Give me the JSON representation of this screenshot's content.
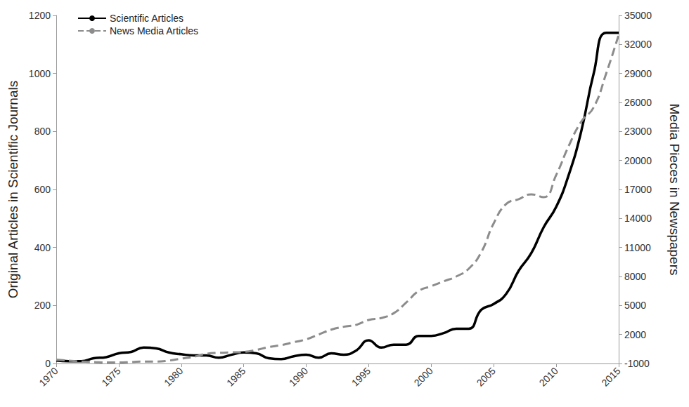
{
  "chart_data": {
    "type": "line",
    "x": [
      1970,
      1971,
      1972,
      1973,
      1974,
      1975,
      1976,
      1977,
      1978,
      1979,
      1980,
      1981,
      1982,
      1983,
      1984,
      1985,
      1986,
      1987,
      1988,
      1989,
      1990,
      1991,
      1992,
      1993,
      1994,
      1995,
      1996,
      1997,
      1998,
      1999,
      2000,
      2001,
      2002,
      2003,
      2004,
      2005,
      2006,
      2007,
      2008,
      2009,
      2010,
      2011,
      2012,
      2013,
      2014,
      2015
    ],
    "series": [
      {
        "name": "Scientific Articles",
        "color": "#000000",
        "line_style": "solid",
        "axis": "y",
        "values": [
          10,
          8,
          8,
          18,
          22,
          35,
          40,
          55,
          52,
          38,
          32,
          28,
          28,
          20,
          30,
          38,
          35,
          18,
          15,
          25,
          30,
          20,
          35,
          30,
          45,
          80,
          55,
          65,
          65,
          95,
          95,
          105,
          120,
          120,
          185,
          205,
          240,
          320,
          380,
          470,
          540,
          650,
          800,
          1000,
          1140,
          1140
        ]
      },
      {
        "name": "News Media Articles",
        "color": "#8c8c8c",
        "line_style": "dashed",
        "axis": "y2",
        "values": [
          -600,
          -700,
          -800,
          -850,
          -900,
          -900,
          -850,
          -800,
          -800,
          -700,
          -500,
          -300,
          0,
          100,
          150,
          200,
          400,
          700,
          900,
          1200,
          1500,
          2000,
          2500,
          2800,
          3000,
          3500,
          3700,
          4200,
          5300,
          6500,
          7000,
          7500,
          8000,
          8800,
          10500,
          13500,
          15500,
          16000,
          16500,
          16200,
          18500,
          21500,
          24000,
          25500,
          29000,
          33000
        ]
      }
    ],
    "xlim": [
      1970,
      2015
    ],
    "xticks": [
      1970,
      1975,
      1980,
      1985,
      1990,
      1995,
      2000,
      2005,
      2010,
      2015
    ],
    "ylabel": "Original Articles in Scientific Journals",
    "ylim": [
      0,
      1200
    ],
    "yticks": [
      0,
      200,
      400,
      600,
      800,
      1000,
      1200
    ],
    "y2label": "Media Pieces in Newspapers",
    "y2lim": [
      -1000,
      35000
    ],
    "y2ticks": [
      -1000,
      2000,
      5000,
      8000,
      11000,
      14000,
      17000,
      20000,
      23000,
      26000,
      29000,
      32000,
      35000
    ],
    "legend": "upper left",
    "grid": false
  }
}
